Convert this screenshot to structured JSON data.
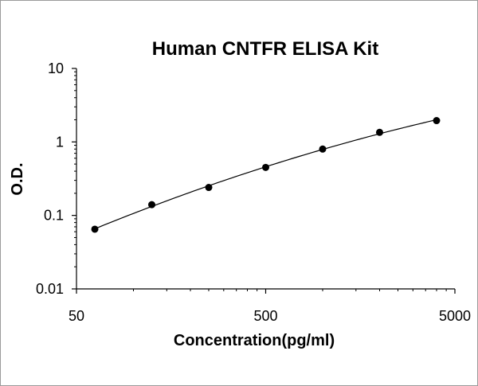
{
  "chart_data": {
    "type": "scatter",
    "title": "Human CNTFR ELISA Kit",
    "xlabel": "Concentration(pg/ml)",
    "ylabel": "O.D.",
    "xscale": "log",
    "yscale": "log",
    "xlim": [
      50,
      5000
    ],
    "ylim": [
      0.01,
      10
    ],
    "xticks": [
      "50",
      "500",
      "5000"
    ],
    "yticks": [
      "10",
      "1",
      "0.1",
      "0.01"
    ],
    "grid": false,
    "legend": "none",
    "series": [
      {
        "points": [
          {
            "x": 62.5,
            "y": 0.065
          },
          {
            "x": 125,
            "y": 0.14
          },
          {
            "x": 250,
            "y": 0.24
          },
          {
            "x": 500,
            "y": 0.45
          },
          {
            "x": 1000,
            "y": 0.8
          },
          {
            "x": 2000,
            "y": 1.35
          },
          {
            "x": 4000,
            "y": 1.95
          }
        ]
      }
    ],
    "fit_curve": true,
    "colors": {
      "marker": "#000000",
      "line": "#000000",
      "axis": "#000000"
    }
  }
}
